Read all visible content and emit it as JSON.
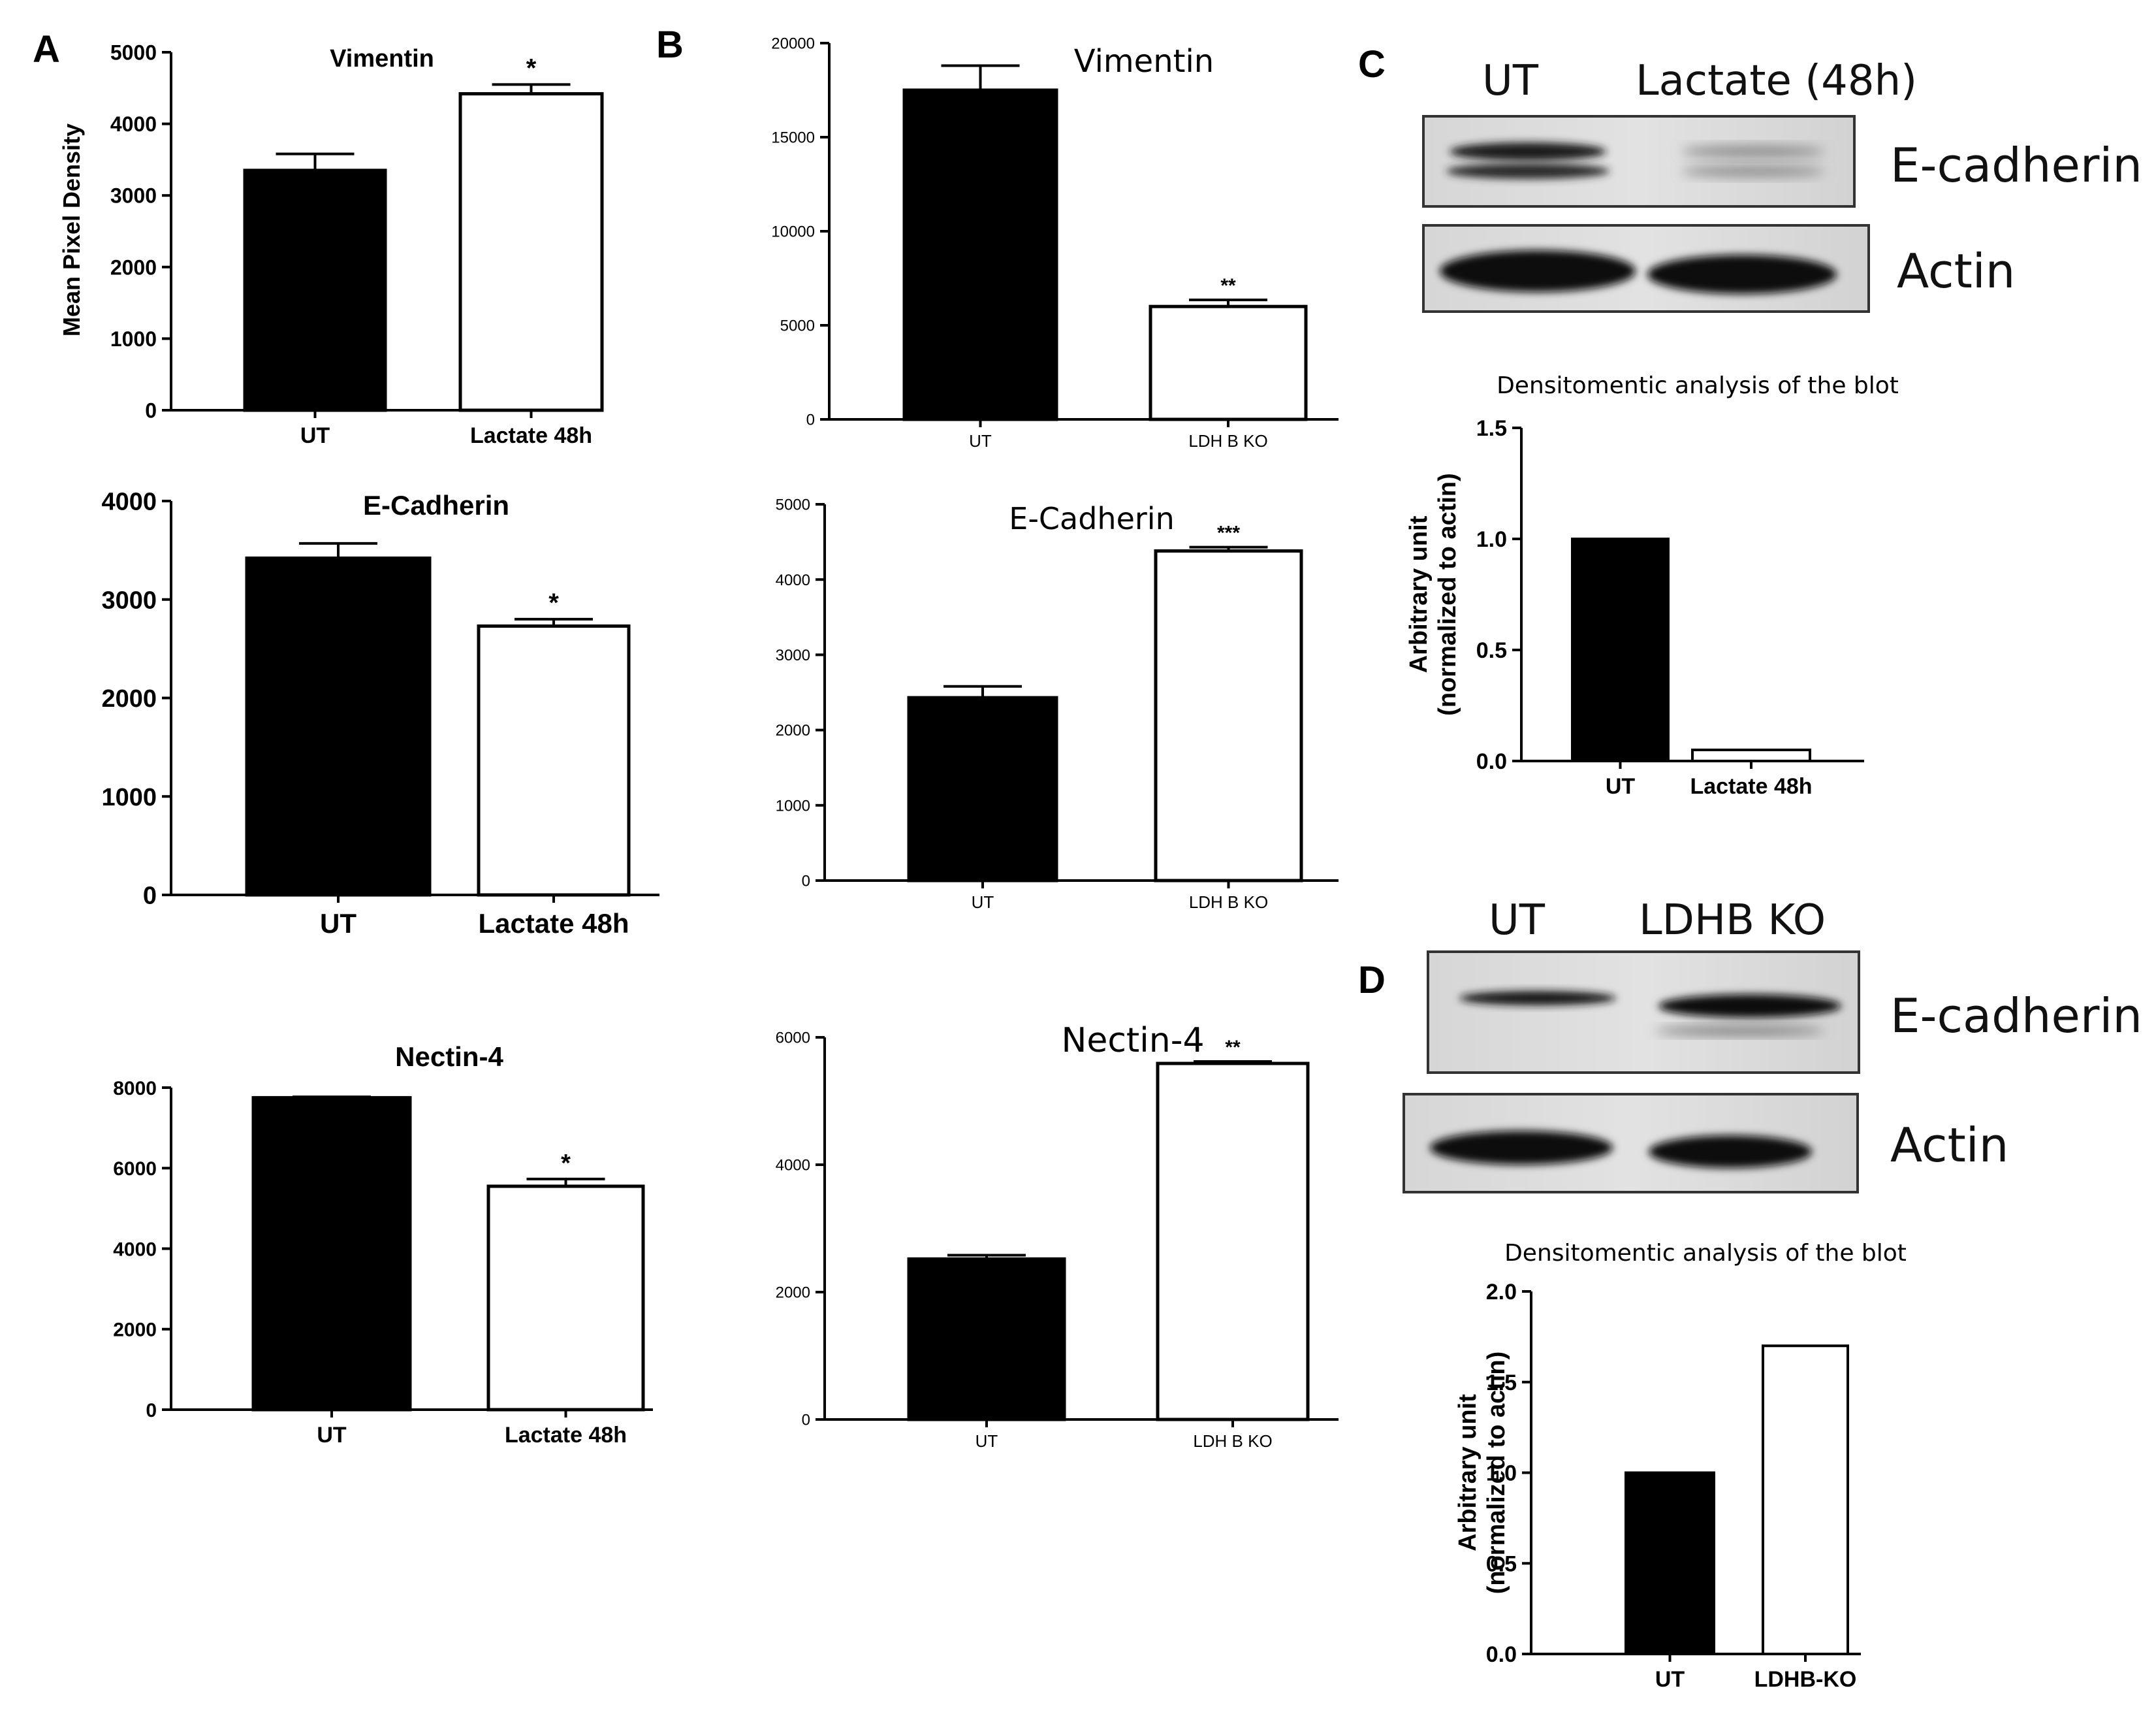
{
  "panel_labels": [
    "A",
    "B",
    "C",
    "D"
  ],
  "blots": [
    {
      "panel": "C",
      "lanes": [
        "UT",
        "Lactate (48h)"
      ],
      "bands": [
        "E-cadherin",
        "Actin"
      ]
    },
    {
      "panel": "D",
      "lanes": [
        "UT",
        "LDHB KO"
      ],
      "bands": [
        "E-cadherin",
        "Actin"
      ]
    }
  ],
  "colors": {
    "bar_ut": "#000000",
    "bar_treated": "#ffffff",
    "axis": "#000000"
  },
  "chart_data": [
    {
      "id": "A1",
      "type": "bar",
      "title": "Vimentin",
      "ylabel": "Mean Pixel Density",
      "categories": [
        "UT",
        "Lactate 48h"
      ],
      "values": [
        3350,
        4420
      ],
      "errors": [
        230,
        130
      ],
      "significance": [
        "",
        "*"
      ],
      "ylim": [
        0,
        5000
      ],
      "yticks": [
        "0",
        "1000",
        "2000",
        "3000",
        "4000",
        "5000"
      ]
    },
    {
      "id": "A2",
      "type": "bar",
      "title": "E-Cadherin",
      "ylabel": "",
      "categories": [
        "UT",
        "Lactate 48h"
      ],
      "values": [
        3420,
        2730
      ],
      "errors": [
        150,
        70
      ],
      "significance": [
        "",
        "*"
      ],
      "ylim": [
        0,
        4000
      ],
      "yticks": [
        "0",
        "1000",
        "2000",
        "3000",
        "4000"
      ]
    },
    {
      "id": "A3",
      "type": "bar",
      "title": "Nectin-4",
      "ylabel": "",
      "categories": [
        "UT",
        "Lactate 48h"
      ],
      "values": [
        7750,
        5550
      ],
      "errors": [
        20,
        180
      ],
      "significance": [
        "",
        "*"
      ],
      "ylim": [
        0,
        8000
      ],
      "yticks": [
        "0",
        "2000",
        "4000",
        "6000",
        "8000"
      ]
    },
    {
      "id": "B1",
      "type": "bar",
      "title": "Vimentin",
      "ylabel": "",
      "categories": [
        "UT",
        "LDH B KO"
      ],
      "values": [
        17500,
        6000
      ],
      "errors": [
        1300,
        350
      ],
      "significance": [
        "",
        "**"
      ],
      "ylim": [
        0,
        20000
      ],
      "yticks": [
        "0",
        "5000",
        "10000",
        "15000",
        "20000"
      ]
    },
    {
      "id": "B2",
      "type": "bar",
      "title": "E-Cadherin",
      "ylabel": "",
      "categories": [
        "UT",
        "LDH B KO"
      ],
      "values": [
        2430,
        4380
      ],
      "errors": [
        150,
        50
      ],
      "significance": [
        "",
        "***"
      ],
      "ylim": [
        0,
        5000
      ],
      "yticks": [
        "0",
        "1000",
        "2000",
        "3000",
        "4000",
        "5000"
      ]
    },
    {
      "id": "B3",
      "type": "bar",
      "title": "Nectin-4",
      "ylabel": "",
      "categories": [
        "UT",
        "LDH B KO"
      ],
      "values": [
        2520,
        5590
      ],
      "errors": [
        60,
        30
      ],
      "significance": [
        "",
        "**"
      ],
      "ylim": [
        0,
        6000
      ],
      "yticks": [
        "0",
        "2000",
        "4000",
        "6000"
      ]
    },
    {
      "id": "C",
      "type": "bar",
      "title": "Densitomentic analysis of the blot",
      "ylabel": "Arbitrary unit (normalized to actin)",
      "categories": [
        "UT",
        "Lactate 48h"
      ],
      "values": [
        1.0,
        0.05
      ],
      "errors": [
        0,
        0
      ],
      "significance": [
        "",
        ""
      ],
      "ylim": [
        0,
        1.5
      ],
      "yticks": [
        "0.0",
        "0.5",
        "1.0",
        "1.5"
      ]
    },
    {
      "id": "D",
      "type": "bar",
      "title": "Densitomentic analysis of the blot",
      "ylabel": "Arbitrary unit (normalized to actin)",
      "categories": [
        "UT",
        "LDHB-KO"
      ],
      "values": [
        1.0,
        1.7
      ],
      "errors": [
        0,
        0
      ],
      "significance": [
        "",
        ""
      ],
      "ylim": [
        0,
        2.0
      ],
      "yticks": [
        "0.0",
        "0.5",
        "1.0",
        "1.5",
        "2.0"
      ]
    }
  ]
}
